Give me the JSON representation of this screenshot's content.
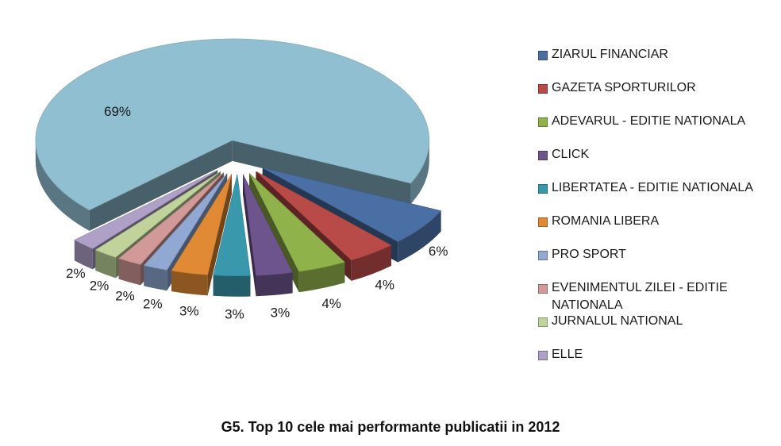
{
  "caption": "G5. Top 10 cele mai performante publicatii in 2012",
  "chart_data": {
    "type": "pie",
    "style": "3d-exploded",
    "legend_position": "right",
    "slices": [
      {
        "name": "ZIARUL FINANCIAR",
        "value": 6,
        "label": "6%",
        "color": "#4A6FA5"
      },
      {
        "name": "GAZETA SPORTURILOR",
        "value": 4,
        "label": "4%",
        "color": "#B84A47"
      },
      {
        "name": "ADEVARUL - EDITIE NATIONALA",
        "value": 4,
        "label": "4%",
        "color": "#8FB24B"
      },
      {
        "name": "CLICK",
        "value": 3,
        "label": "3%",
        "color": "#6E548C"
      },
      {
        "name": "LIBERTATEA - EDITIE NATIONALA",
        "value": 3,
        "label": "3%",
        "color": "#3A98AD"
      },
      {
        "name": "ROMANIA LIBERA",
        "value": 3,
        "label": "3%",
        "color": "#E08A35"
      },
      {
        "name": "PRO SPORT",
        "value": 2,
        "label": "2%",
        "color": "#90A8D2"
      },
      {
        "name": "EVENIMENTUL ZILEI - EDITIE NATIONALA",
        "value": 2,
        "label": "2%",
        "color": "#D19A98"
      },
      {
        "name": "JURNALUL NATIONAL",
        "value": 2,
        "label": "2%",
        "color": "#BFD39A"
      },
      {
        "name": "ELLE",
        "value": 2,
        "label": "2%",
        "color": "#AFA0C8"
      },
      {
        "name": "",
        "value": 69,
        "label": "69%",
        "color": "#8FBFD1"
      }
    ]
  }
}
